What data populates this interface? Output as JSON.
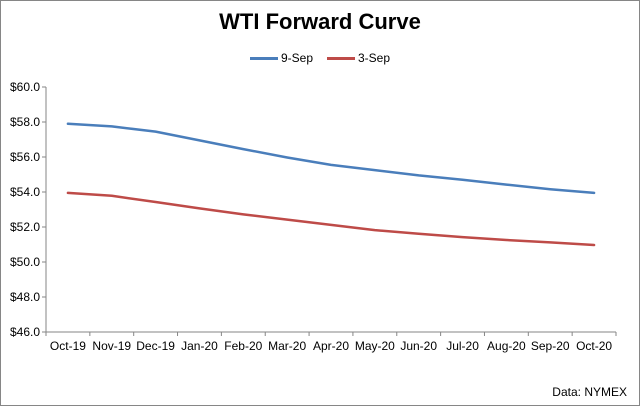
{
  "chart_data": {
    "type": "line",
    "title": "WTI Forward Curve",
    "xlabel": "",
    "ylabel": "",
    "categories": [
      "Oct-19",
      "Nov-19",
      "Dec-19",
      "Jan-20",
      "Feb-20",
      "Mar-20",
      "Apr-20",
      "May-20",
      "Jun-20",
      "Jul-20",
      "Aug-20",
      "Sep-20",
      "Oct-20"
    ],
    "ylim": [
      46,
      60
    ],
    "yticks": [
      46,
      48,
      50,
      52,
      54,
      56,
      58,
      60
    ],
    "ytick_labels": [
      "$46.0",
      "$48.0",
      "$50.0",
      "$52.0",
      "$54.0",
      "$56.0",
      "$58.0",
      "$60.0"
    ],
    "grid": false,
    "legend_position": "top",
    "series": [
      {
        "name": "9-Sep",
        "color": "#4a7ebb",
        "values": [
          57.9,
          57.75,
          57.45,
          56.95,
          56.45,
          55.97,
          55.55,
          55.25,
          54.95,
          54.7,
          54.42,
          54.16,
          53.95
        ]
      },
      {
        "name": "3-Sep",
        "color": "#be4b48",
        "values": [
          53.95,
          53.78,
          53.43,
          53.06,
          52.72,
          52.42,
          52.12,
          51.82,
          51.61,
          51.42,
          51.26,
          51.12,
          50.97
        ]
      }
    ],
    "source": "Data: NYMEX"
  }
}
